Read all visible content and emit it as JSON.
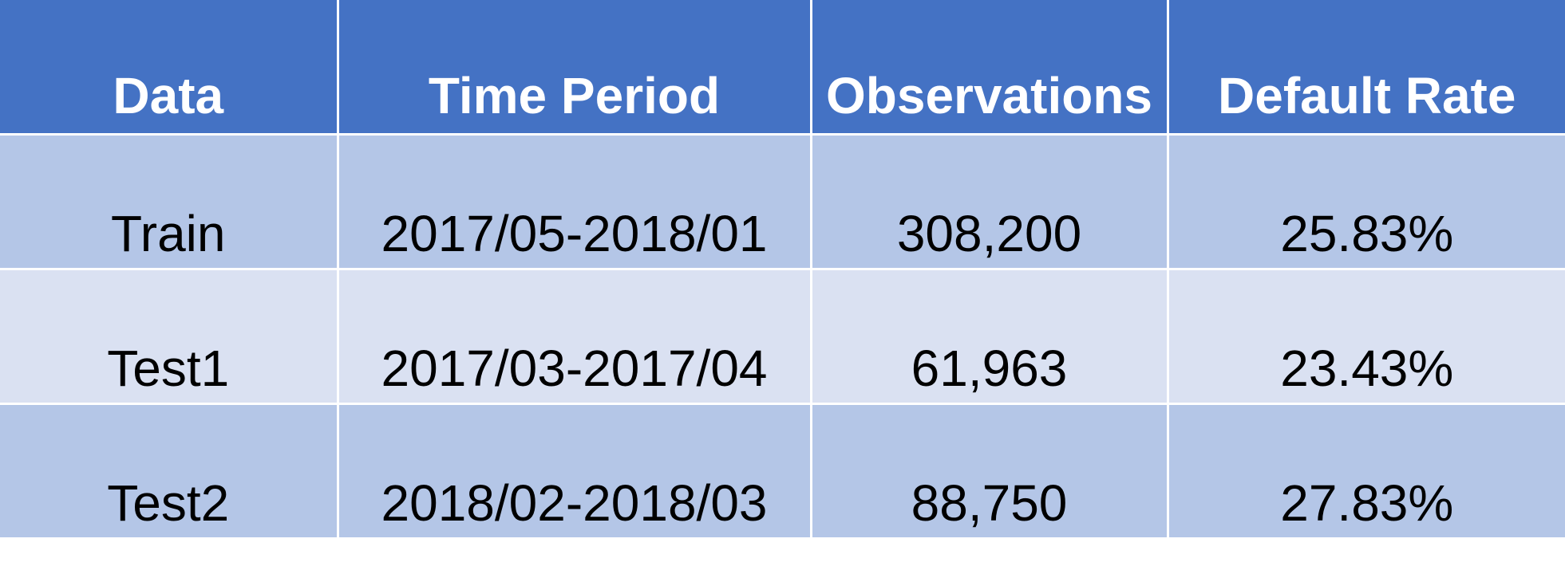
{
  "table": {
    "headers": [
      "Data",
      "Time Period",
      "Observations",
      "Default Rate"
    ],
    "rows": [
      [
        "Train",
        "2017/05-2018/01",
        "308,200",
        "25.83%"
      ],
      [
        "Test1",
        "2017/03-2017/04",
        "61,963",
        "23.43%"
      ],
      [
        "Test2",
        "2018/02-2018/03",
        "88,750",
        "27.83%"
      ]
    ]
  },
  "colors": {
    "header_bg": "#4472c4",
    "header_text": "#ffffff",
    "row_band_dark": "#b4c6e7",
    "row_band_light": "#dae1f2",
    "body_text": "#000000",
    "gridline": "#ffffff"
  }
}
